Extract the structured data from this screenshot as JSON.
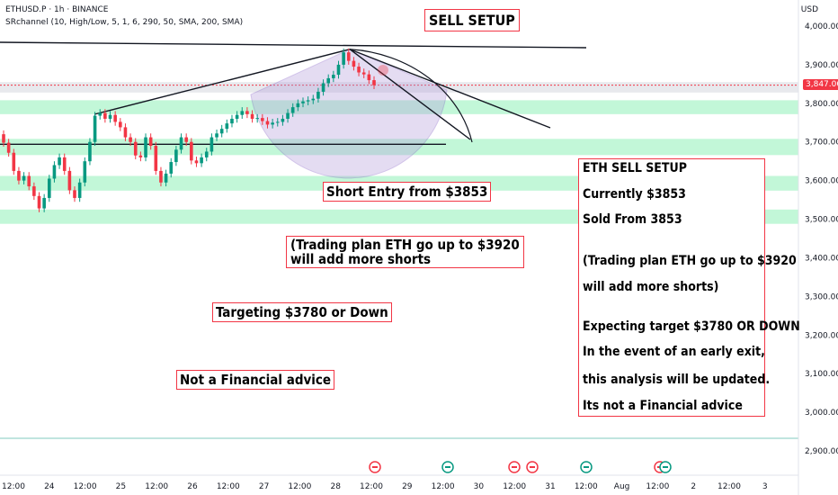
{
  "header": {
    "symbol_line": "ETHUSD.P · 1h · BINANCE",
    "indicator_line": "SRchannel (10, High/Low, 5, 1, 6, 290, 50, SMA, 200, SMA)"
  },
  "currency": "USD",
  "current_price": "3,847.06",
  "annotations": {
    "sell_setup": "SELL SETUP",
    "short_entry": "Short Entry from $3853",
    "trading_plan_line1": "(Trading plan ETH go up to $3920",
    "trading_plan_line2": "will add more shorts",
    "targeting": "Targeting $3780 or Down",
    "not_advice": "Not a Financial advice"
  },
  "info_box": {
    "lines": [
      "ETH SELL SETUP",
      "Currently $3853",
      "Sold From 3853",
      "(Trading plan ETH go up to $3920",
      "will add more shorts)",
      "Expecting target $3780 OR DOWN",
      "In the event of an early exit,",
      "this analysis will be updated.",
      "Its not a Financial advice"
    ]
  },
  "colors": {
    "up": "#089981",
    "down": "#f23645",
    "zone": "#8ff0b8",
    "box_border": "#f23645"
  },
  "chart_data": {
    "type": "candlestick",
    "title": "ETHUSD.P · 1h · BINANCE",
    "ylabel": "USD",
    "ylim": [
      2880,
      4040
    ],
    "y_ticks": [
      4000,
      3900,
      3800,
      3700,
      3600,
      3500,
      3400,
      3300,
      3200,
      3100,
      3000,
      2900
    ],
    "y_tick_labels": [
      "4,000.00",
      "3,900.00",
      "3,800.00",
      "3,700.00",
      "3,600.00",
      "3,500.00",
      "3,400.00",
      "3,300.00",
      "3,200.00",
      "3,100.00",
      "3,000.00",
      "2,900.00"
    ],
    "x_tick_labels": [
      "12:00",
      "24",
      "12:00",
      "25",
      "12:00",
      "26",
      "12:00",
      "27",
      "12:00",
      "28",
      "12:00",
      "29",
      "12:00",
      "30",
      "12:00",
      "31",
      "12:00",
      "Aug",
      "12:00",
      "2",
      "12:00",
      "3"
    ],
    "current_price": 3847.06,
    "sr_zones": [
      {
        "low": 3772,
        "high": 3808
      },
      {
        "low": 3666,
        "high": 3708
      },
      {
        "low": 3574,
        "high": 3612
      },
      {
        "low": 3488,
        "high": 3525
      }
    ],
    "candles": {
      "open": [
        3720,
        3698,
        3672,
        3625,
        3600,
        3612,
        3585,
        3560,
        3528,
        3555,
        3605,
        3640,
        3660,
        3625,
        3575,
        3555,
        3595,
        3650,
        3700,
        3768,
        3775,
        3760,
        3770,
        3752,
        3738,
        3712,
        3700,
        3665,
        3660,
        3712,
        3690,
        3625,
        3595,
        3618,
        3648,
        3680,
        3712,
        3700,
        3652,
        3645,
        3660,
        3675,
        3712,
        3722,
        3734,
        3748,
        3760,
        3770,
        3780,
        3772,
        3760,
        3762,
        3754,
        3745,
        3750,
        3752,
        3760,
        3775,
        3790,
        3800,
        3805,
        3808,
        3812,
        3830,
        3852,
        3865,
        3874,
        3900,
        3932,
        3910,
        3895,
        3880,
        3875,
        3860
      ],
      "close": [
        3698,
        3672,
        3625,
        3600,
        3612,
        3585,
        3560,
        3528,
        3555,
        3605,
        3640,
        3660,
        3625,
        3575,
        3555,
        3595,
        3650,
        3700,
        3768,
        3775,
        3760,
        3770,
        3752,
        3738,
        3712,
        3700,
        3665,
        3660,
        3712,
        3690,
        3625,
        3595,
        3618,
        3648,
        3680,
        3712,
        3700,
        3652,
        3645,
        3660,
        3675,
        3712,
        3722,
        3734,
        3748,
        3760,
        3770,
        3780,
        3772,
        3760,
        3762,
        3754,
        3745,
        3750,
        3752,
        3760,
        3775,
        3790,
        3800,
        3805,
        3808,
        3812,
        3830,
        3852,
        3865,
        3874,
        3900,
        3932,
        3910,
        3895,
        3880,
        3875,
        3860,
        3847
      ]
    },
    "drawings": {
      "horizontal_levels": [
        3938,
        3694
      ],
      "sell_signal": "down arrow from peak"
    }
  }
}
